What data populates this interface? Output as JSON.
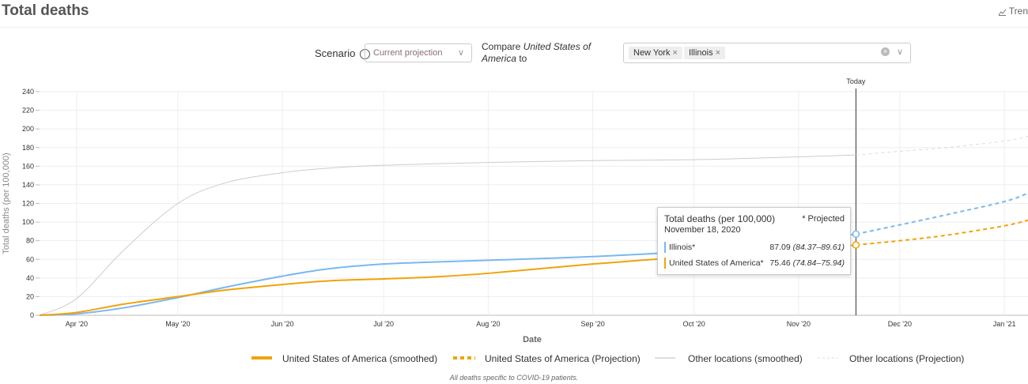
{
  "header": {
    "title": "Total deaths",
    "trend_label": "Tren"
  },
  "controls": {
    "scenario_label": "Scenario",
    "scenario_value": "Current projection",
    "compare_text": "Compare United States of America to",
    "compare_chips": [
      "New York",
      "Illinois"
    ]
  },
  "tooltip": {
    "title": "Total deaths (per 100,000)",
    "projected_note": "* Projected",
    "date": "November 18, 2020",
    "rows": [
      {
        "name": "Illinois*",
        "value": "87.09",
        "range": "(84.37–89.61)",
        "color": "#7ab8ef"
      },
      {
        "name": "United States of America*",
        "value": "75.46",
        "range": "(74.84–75.94)",
        "color": "#f0a30a"
      }
    ]
  },
  "legend": [
    {
      "label": "United States of America (smoothed)",
      "color": "#f0a30a",
      "style": "solid-thick"
    },
    {
      "label": "United States of America (Projection)",
      "color": "#f0a30a",
      "style": "dashed-thick"
    },
    {
      "label": "Other locations (smoothed)",
      "color": "#bbbbbb",
      "style": "solid-thin"
    },
    {
      "label": "Other locations (Projection)",
      "color": "#dddddd",
      "style": "dashed-thin"
    }
  ],
  "note": "All deaths specific to COVID-19 patients.",
  "chart_data": {
    "type": "line",
    "xlabel": "Date",
    "ylabel": "Total deaths (per 100,000)",
    "ylim": [
      0,
      240
    ],
    "yticks": [
      0,
      20,
      40,
      60,
      80,
      100,
      120,
      140,
      160,
      180,
      200,
      220,
      240
    ],
    "x_ticks": [
      {
        "date": "2020-04-01",
        "label": "Apr '20"
      },
      {
        "date": "2020-05-01",
        "label": "May '20"
      },
      {
        "date": "2020-06-01",
        "label": "Jun '20"
      },
      {
        "date": "2020-07-01",
        "label": "Jul '20"
      },
      {
        "date": "2020-08-01",
        "label": "Aug '20"
      },
      {
        "date": "2020-09-01",
        "label": "Sep '20"
      },
      {
        "date": "2020-10-01",
        "label": "Oct '20"
      },
      {
        "date": "2020-11-01",
        "label": "Nov '20"
      },
      {
        "date": "2020-12-01",
        "label": "Dec '20"
      },
      {
        "date": "2021-01-01",
        "label": "Jan '21"
      }
    ],
    "xlim": [
      "2020-03-21",
      "2021-01-08"
    ],
    "today": {
      "date": "2020-11-18",
      "label": "Today"
    },
    "grid": true,
    "legend_position": "bottom",
    "series": [
      {
        "name": "Illinois",
        "color": "#7ab8ef",
        "width": 2,
        "x": [
          "2020-03-21",
          "2020-04-01",
          "2020-04-15",
          "2020-05-01",
          "2020-05-15",
          "2020-06-01",
          "2020-06-15",
          "2020-07-01",
          "2020-07-15",
          "2020-08-01",
          "2020-09-01",
          "2020-10-01",
          "2020-11-01",
          "2020-11-18"
        ],
        "y": [
          0,
          1.5,
          8,
          19,
          30,
          42,
          50,
          55,
          57,
          59,
          63,
          69,
          80,
          87.09
        ],
        "proj_x": [
          "2020-11-18",
          "2020-12-01",
          "2020-12-15",
          "2021-01-01",
          "2021-01-08"
        ],
        "proj_y": [
          87.09,
          97,
          108,
          122,
          131
        ]
      },
      {
        "name": "United States of America",
        "color": "#f0a30a",
        "width": 2,
        "x": [
          "2020-03-21",
          "2020-04-01",
          "2020-04-15",
          "2020-05-01",
          "2020-05-15",
          "2020-06-01",
          "2020-06-15",
          "2020-07-01",
          "2020-07-15",
          "2020-08-01",
          "2020-09-01",
          "2020-10-01",
          "2020-11-01",
          "2020-11-18"
        ],
        "y": [
          0,
          3,
          12,
          20,
          27,
          33,
          37,
          39,
          41,
          45,
          55,
          63,
          70,
          75.46
        ],
        "proj_x": [
          "2020-11-18",
          "2020-12-01",
          "2020-12-15",
          "2021-01-01",
          "2021-01-08"
        ],
        "proj_y": [
          75.46,
          80,
          86,
          96,
          102
        ]
      },
      {
        "name": "New York",
        "color": "#cccccc",
        "width": 1,
        "x": [
          "2020-03-21",
          "2020-04-01",
          "2020-04-15",
          "2020-05-01",
          "2020-05-15",
          "2020-06-01",
          "2020-06-15",
          "2020-07-01",
          "2020-08-01",
          "2020-09-01",
          "2020-10-01",
          "2020-11-01",
          "2020-11-18"
        ],
        "y": [
          0,
          18,
          70,
          120,
          142,
          153,
          158,
          161,
          164,
          166,
          167,
          170,
          172
        ],
        "proj_x": [
          "2020-11-18",
          "2020-12-01",
          "2020-12-15",
          "2021-01-01",
          "2021-01-08"
        ],
        "proj_y": [
          172,
          176,
          180,
          187,
          192
        ]
      }
    ],
    "markers": [
      {
        "series": "Illinois",
        "date": "2020-11-18",
        "value": 87.09,
        "color": "#7ab8ef"
      },
      {
        "series": "United States of America",
        "date": "2020-11-18",
        "value": 75.46,
        "color": "#f0a30a"
      }
    ]
  }
}
